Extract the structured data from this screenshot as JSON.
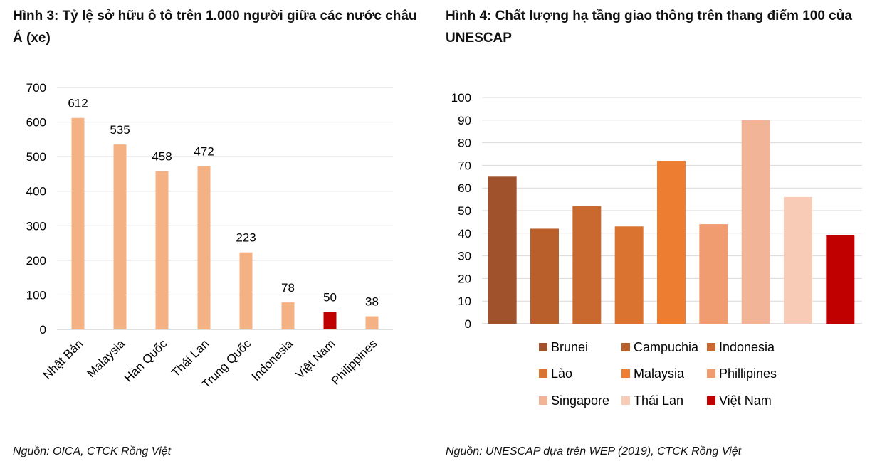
{
  "figure1": {
    "title": "Hình 3: Tỷ lệ sở hữu ô tô trên 1.000 người giữa các nước châu Á (xe)",
    "source": "Nguồn: OICA, CTCK Rồng Việt"
  },
  "figure2": {
    "title": "Hình 4: Chất lượng hạ tầng giao thông trên thang điểm 100 của UNESCAP",
    "source": "Nguồn: UNESCAP dựa trên WEP (2019), CTCK Rồng Việt"
  },
  "chart_data": [
    {
      "type": "bar",
      "title": "Hình 3: Tỷ lệ sở hữu ô tô trên 1.000 người giữa các nước châu Á (xe)",
      "categories": [
        "Nhật Bản",
        "Malaysia",
        "Hàn Quốc",
        "Thái Lan",
        "Trung Quốc",
        "Indonesia",
        "Việt Nam",
        "Philippines"
      ],
      "values": [
        612,
        535,
        458,
        472,
        223,
        78,
        50,
        38
      ],
      "colors": [
        "#F4B183",
        "#F4B183",
        "#F4B183",
        "#F4B183",
        "#F4B183",
        "#F4B183",
        "#C00000",
        "#F4B183"
      ],
      "ylim": [
        0,
        700
      ],
      "yticks": [
        0,
        100,
        200,
        300,
        400,
        500,
        600,
        700
      ],
      "grid": true,
      "data_labels": true,
      "xlabel": "",
      "ylabel": ""
    },
    {
      "type": "bar",
      "title": "Hình 4: Chất lượng hạ tầng giao thông trên thang điểm 100 của UNESCAP",
      "categories": [
        "Brunei",
        "Campuchia",
        "Indonesia",
        "Lào",
        "Malaysia",
        "Phillipines",
        "Singapore",
        "Thái Lan",
        "Việt Nam"
      ],
      "values": [
        65,
        42,
        52,
        43,
        72,
        44,
        90,
        56,
        39
      ],
      "colors": [
        "#A0522D",
        "#B85F2B",
        "#C9692F",
        "#D9732F",
        "#ED7D31",
        "#F09C70",
        "#F2B497",
        "#F8CBB7",
        "#C00000"
      ],
      "ylim": [
        0,
        100
      ],
      "yticks": [
        0,
        10,
        20,
        30,
        40,
        50,
        60,
        70,
        80,
        90,
        100
      ],
      "grid": true,
      "legend": "bottom",
      "xlabel": "",
      "ylabel": ""
    }
  ]
}
